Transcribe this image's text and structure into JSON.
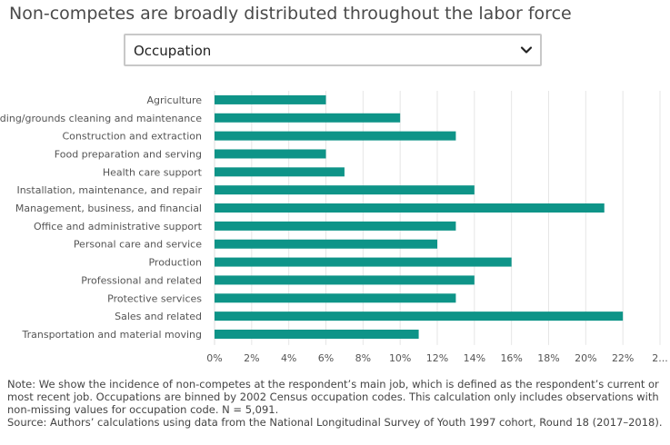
{
  "title": "Non-competes are broadly distributed throughout the labor force",
  "selector": {
    "selected": "Occupation"
  },
  "colors": {
    "bar": "#0e9488",
    "grid": "#e6e6e6",
    "axis": "#dddddd"
  },
  "chart_data": {
    "type": "bar",
    "orientation": "horizontal",
    "categories": [
      "Agriculture",
      "Building/grounds cleaning and maintenance",
      "Construction and extraction",
      "Food preparation and serving",
      "Health care support",
      "Installation, maintenance, and repair",
      "Management, business, and financial",
      "Office and administrative support",
      "Personal care and service",
      "Production",
      "Professional and related",
      "Protective services",
      "Sales and related",
      "Transportation and material moving"
    ],
    "values": [
      6,
      10,
      13,
      6,
      7,
      14,
      21,
      13,
      12,
      16,
      14,
      13,
      22,
      11
    ],
    "xlim": [
      0,
      24
    ],
    "x_ticks": [
      "0%",
      "2%",
      "4%",
      "6%",
      "8%",
      "10%",
      "12%",
      "14%",
      "16%",
      "18%",
      "20%",
      "22%",
      "2..."
    ],
    "grid": true,
    "xlabel": "",
    "ylabel": ""
  },
  "note": {
    "text": "Note: We show the incidence of non-competes at the respondent’s main job, which is defined as the respondent’s current or most recent job. Occupations are binned by 2002 Census occupation codes. This calculation only includes observations with non-missing values for occupation code. N = 5,091.",
    "source": "Source: Authors’ calculations using data from the National Longitudinal Survey of Youth 1997 cohort, Round 18 (2017–2018)."
  }
}
